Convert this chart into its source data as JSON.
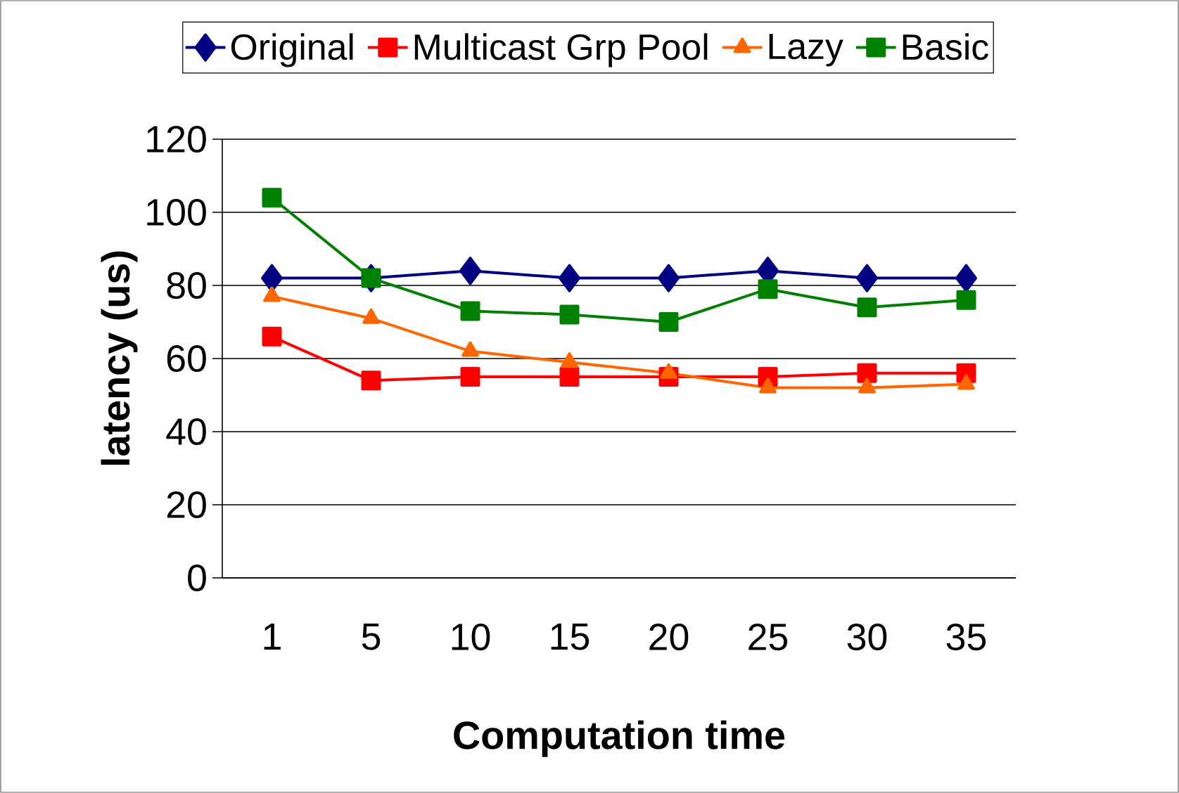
{
  "chart_data": {
    "type": "line",
    "xlabel": "Computation time",
    "ylabel": "latency (us)",
    "categories": [
      "1",
      "5",
      "10",
      "15",
      "20",
      "25",
      "30",
      "35"
    ],
    "series": [
      {
        "name": "Original",
        "color": "#000080",
        "marker": "diamond",
        "values": [
          82,
          82,
          84,
          82,
          82,
          84,
          82,
          82
        ]
      },
      {
        "name": "Multicast Grp Pool",
        "color": "#ff0000",
        "marker": "square",
        "values": [
          66,
          54,
          55,
          55,
          55,
          55,
          56,
          56
        ]
      },
      {
        "name": "Lazy",
        "color": "#ff6600",
        "marker": "triangle",
        "values": [
          77,
          71,
          62,
          59,
          56,
          52,
          52,
          53
        ]
      },
      {
        "name": "Basic",
        "color": "#008000",
        "marker": "square",
        "values": [
          104,
          82,
          73,
          72,
          70,
          79,
          74,
          76
        ]
      }
    ],
    "ylim": [
      0,
      120
    ],
    "yticks": [
      0,
      20,
      40,
      60,
      80,
      100,
      120
    ],
    "grid": "y",
    "legend": "top",
    "line_style": "solid"
  }
}
